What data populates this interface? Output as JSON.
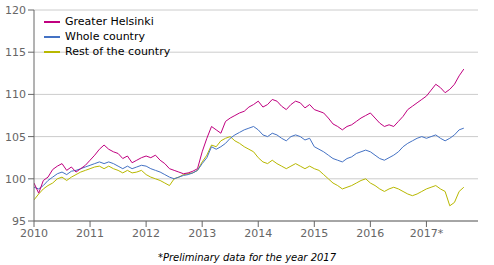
{
  "chart_data": {
    "type": "line",
    "footnote": "*Preliminary data for the year 2017",
    "x": [
      2010,
      2010.0833333333333,
      2010.1666666666667,
      2010.25,
      2010.3333333333333,
      2010.4166666666667,
      2010.5,
      2010.5833333333333,
      2010.6666666666667,
      2010.75,
      2010.8333333333333,
      2010.9166666666667,
      2011,
      2011.0833333333333,
      2011.1666666666667,
      2011.25,
      2011.3333333333333,
      2011.4166666666667,
      2011.5,
      2011.5833333333333,
      2011.6666666666667,
      2011.75,
      2011.8333333333333,
      2011.9166666666667,
      2012,
      2012.0833333333333,
      2012.1666666666667,
      2012.25,
      2012.3333333333333,
      2012.4166666666667,
      2012.5,
      2012.5833333333333,
      2012.6666666666667,
      2012.75,
      2012.8333333333333,
      2012.9166666666667,
      2013,
      2013.0833333333333,
      2013.1666666666667,
      2013.25,
      2013.3333333333333,
      2013.4166666666667,
      2013.5,
      2013.5833333333333,
      2013.6666666666667,
      2013.75,
      2013.8333333333333,
      2013.9166666666667,
      2014,
      2014.0833333333333,
      2014.1666666666667,
      2014.25,
      2014.3333333333333,
      2014.4166666666667,
      2014.5,
      2014.5833333333333,
      2014.6666666666667,
      2014.75,
      2014.8333333333333,
      2014.9166666666667,
      2015,
      2015.0833333333333,
      2015.1666666666667,
      2015.25,
      2015.3333333333333,
      2015.4166666666667,
      2015.5,
      2015.5833333333333,
      2015.6666666666667,
      2015.75,
      2015.8333333333333,
      2015.9166666666667,
      2016,
      2016.0833333333333,
      2016.1666666666667,
      2016.25,
      2016.3333333333333,
      2016.4166666666667,
      2016.5,
      2016.5833333333333,
      2016.6666666666667,
      2016.75,
      2016.8333333333333,
      2016.9166666666667,
      2017,
      2017.0833333333333,
      2017.1666666666667,
      2017.25,
      2017.3333333333333,
      2017.4166666666667,
      2017.5,
      2017.5833333333333,
      2017.6666666666667
    ],
    "series": [
      {
        "name": "Greater Helsinki",
        "color": "#c0007f",
        "values": [
          99.5,
          98.3,
          99.8,
          100.2,
          101.1,
          101.5,
          101.8,
          101.0,
          101.4,
          100.8,
          101.2,
          101.6,
          102.2,
          102.8,
          103.5,
          104.0,
          103.5,
          103.2,
          103.0,
          102.4,
          102.7,
          101.9,
          102.2,
          102.5,
          102.7,
          102.5,
          102.8,
          102.2,
          101.8,
          101.2,
          101.0,
          100.8,
          100.6,
          100.7,
          100.9,
          101.2,
          103.2,
          104.8,
          106.2,
          105.8,
          105.4,
          106.8,
          107.2,
          107.5,
          107.8,
          108.0,
          108.5,
          108.8,
          109.2,
          108.5,
          108.8,
          109.4,
          109.2,
          108.6,
          108.2,
          108.8,
          109.2,
          109.0,
          108.4,
          108.8,
          108.2,
          108.0,
          107.8,
          107.2,
          106.5,
          106.2,
          105.8,
          106.2,
          106.4,
          106.8,
          107.2,
          107.5,
          107.8,
          107.2,
          106.6,
          106.2,
          106.4,
          106.2,
          106.8,
          107.4,
          108.2,
          108.6,
          109.0,
          109.4,
          109.8,
          110.5,
          111.2,
          110.8,
          110.2,
          110.6,
          111.2,
          112.2,
          113.0
        ]
      },
      {
        "name": "Whole country",
        "color": "#4472c4",
        "values": [
          99.0,
          98.8,
          99.2,
          99.8,
          100.2,
          100.6,
          100.8,
          100.5,
          100.9,
          101.0,
          101.2,
          101.4,
          101.6,
          101.8,
          102.0,
          101.8,
          102.0,
          101.8,
          101.5,
          101.2,
          101.5,
          101.2,
          101.4,
          101.6,
          101.5,
          101.2,
          101.0,
          100.8,
          100.5,
          100.2,
          100.0,
          100.2,
          100.4,
          100.5,
          100.7,
          101.0,
          101.8,
          102.5,
          103.8,
          103.5,
          103.8,
          104.2,
          104.8,
          105.2,
          105.5,
          105.8,
          106.0,
          106.2,
          105.8,
          105.2,
          105.0,
          105.4,
          105.2,
          104.8,
          104.5,
          105.0,
          105.2,
          105.0,
          104.6,
          104.8,
          103.8,
          103.5,
          103.2,
          102.8,
          102.4,
          102.2,
          102.0,
          102.4,
          102.6,
          103.0,
          103.2,
          103.4,
          103.2,
          102.8,
          102.4,
          102.2,
          102.5,
          102.8,
          103.2,
          103.8,
          104.2,
          104.5,
          104.8,
          105.0,
          104.8,
          105.0,
          105.2,
          104.8,
          104.5,
          104.8,
          105.2,
          105.8,
          106.0
        ]
      },
      {
        "name": "Rest of the country",
        "color": "#b8b800",
        "values": [
          97.5,
          98.2,
          98.8,
          99.2,
          99.5,
          100.0,
          100.2,
          99.8,
          100.2,
          100.5,
          100.8,
          101.0,
          101.2,
          101.4,
          101.5,
          101.2,
          101.5,
          101.2,
          101.0,
          100.7,
          101.0,
          100.7,
          100.8,
          101.0,
          100.5,
          100.2,
          100.0,
          99.8,
          99.5,
          99.2,
          100.0,
          100.2,
          100.5,
          100.6,
          100.7,
          101.0,
          102.0,
          102.8,
          104.0,
          103.8,
          104.5,
          104.8,
          105.0,
          104.5,
          104.2,
          103.8,
          103.5,
          103.2,
          102.5,
          102.0,
          101.8,
          102.2,
          101.8,
          101.5,
          101.2,
          101.5,
          101.8,
          101.5,
          101.2,
          101.5,
          101.2,
          101.0,
          100.5,
          100.0,
          99.5,
          99.2,
          98.8,
          99.0,
          99.2,
          99.5,
          99.8,
          100.0,
          99.5,
          99.2,
          98.8,
          98.5,
          98.8,
          99.0,
          98.8,
          98.5,
          98.2,
          98.0,
          98.2,
          98.5,
          98.8,
          99.0,
          99.2,
          98.8,
          98.5,
          96.8,
          97.2,
          98.5,
          99.0
        ]
      }
    ],
    "xlim": [
      2010.0,
      2017.92
    ],
    "xticks": [
      2010,
      2011,
      2012,
      2013,
      2014,
      2015,
      2016,
      {
        "value": 2017,
        "label": "2017*"
      }
    ],
    "ylim": [
      95,
      120
    ],
    "yticks": [
      95,
      100,
      105,
      110,
      115,
      120
    ],
    "grid": "y",
    "legend": "upper left"
  }
}
